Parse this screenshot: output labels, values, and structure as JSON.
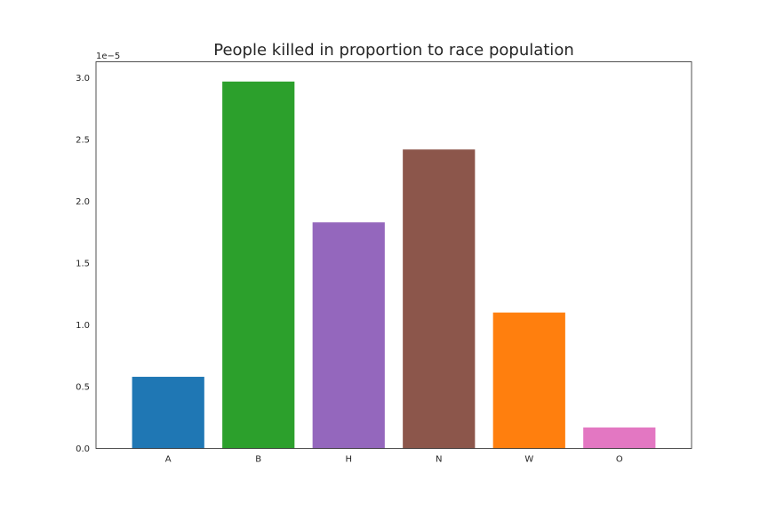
{
  "chart_data": {
    "type": "bar",
    "title": "People killed in proportion to race population",
    "xlabel": "",
    "ylabel": "",
    "categories": [
      "A",
      "B",
      "H",
      "N",
      "W",
      "O"
    ],
    "values": [
      5.8e-06,
      2.97e-05,
      1.83e-05,
      2.42e-05,
      1.1e-05,
      1.7e-06
    ],
    "colors": [
      "#1f77b4",
      "#2ca02c",
      "#9467bd",
      "#8c564b",
      "#ff7f0e",
      "#e377c2"
    ],
    "ylim": [
      0,
      3.13e-05
    ],
    "y_ticks": [
      0.0,
      0.5,
      1.0,
      1.5,
      2.0,
      2.5,
      3.0
    ],
    "y_tick_labels": [
      "0.0",
      "0.5",
      "1.0",
      "1.5",
      "2.0",
      "2.5",
      "3.0"
    ],
    "y_scale_factor": 1e-05,
    "y_offset_label": "1e−5",
    "grid": false,
    "legend": "none"
  }
}
